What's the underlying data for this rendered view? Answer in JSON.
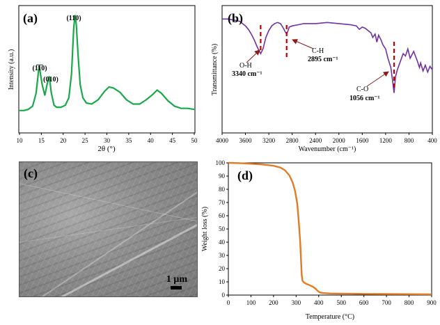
{
  "chart_data": [
    {
      "panel": "(a)",
      "type": "line",
      "xlabel": "2θ (°)",
      "ylabel": "Intensity (a.u.)",
      "xlim": [
        10,
        50
      ],
      "xticks": [
        10,
        15,
        20,
        25,
        30,
        35,
        40,
        45,
        50
      ],
      "color": "#1aa84a",
      "series": [
        {
          "x": [
            10,
            11,
            12,
            13,
            13.8,
            14.5,
            15.2,
            15.8,
            16.3,
            16.8,
            17.3,
            17.9,
            18.5,
            19.5,
            20.5,
            21.3,
            21.9,
            22.4,
            22.7,
            23.0,
            23.4,
            23.9,
            24.5,
            25.3,
            26.5,
            28,
            29.5,
            30.5,
            31.5,
            33,
            34.5,
            36,
            37.5,
            39,
            40.5,
            41.5,
            42.5,
            44,
            45.5,
            47,
            48.5,
            50
          ],
          "y": [
            0.06,
            0.06,
            0.07,
            0.1,
            0.22,
            0.48,
            0.3,
            0.2,
            0.3,
            0.38,
            0.22,
            0.11,
            0.09,
            0.09,
            0.11,
            0.18,
            0.4,
            0.82,
            0.95,
            0.86,
            0.58,
            0.3,
            0.18,
            0.13,
            0.12,
            0.16,
            0.24,
            0.28,
            0.27,
            0.23,
            0.16,
            0.12,
            0.12,
            0.16,
            0.21,
            0.25,
            0.22,
            0.15,
            0.1,
            0.08,
            0.08,
            0.07
          ]
        }
      ],
      "annotations": [
        {
          "text": "(1̅1̅0)",
          "x": 14.5
        },
        {
          "text": "(010)",
          "x": 16.8
        },
        {
          "text": "(110)",
          "x": 22.7
        }
      ]
    },
    {
      "panel": "(b)",
      "type": "line",
      "xlabel": "Wavenumber (cm⁻¹)",
      "ylabel": "Transmittance (%)",
      "xlim": [
        4000,
        400
      ],
      "xticks": [
        4000,
        3600,
        3200,
        2800,
        2400,
        2000,
        1600,
        1200,
        800,
        400
      ],
      "color": "#7030a0",
      "series": [
        {
          "x": [
            4000,
            3900,
            3800,
            3700,
            3600,
            3550,
            3500,
            3450,
            3400,
            3340,
            3300,
            3250,
            3200,
            3150,
            3100,
            3050,
            3000,
            2950,
            2920,
            2895,
            2870,
            2850,
            2800,
            2700,
            2600,
            2400,
            2200,
            2000,
            1800,
            1700,
            1650,
            1600,
            1550,
            1500,
            1450,
            1420,
            1380,
            1350,
            1320,
            1280,
            1250,
            1200,
            1160,
            1110,
            1080,
            1056,
            1030,
            1000,
            950,
            900,
            860,
            820,
            780,
            720,
            660,
            620,
            600,
            560,
            520,
            480,
            440,
            400
          ],
          "y": [
            0.92,
            0.92,
            0.91,
            0.9,
            0.86,
            0.83,
            0.79,
            0.74,
            0.68,
            0.62,
            0.66,
            0.76,
            0.82,
            0.86,
            0.88,
            0.89,
            0.88,
            0.84,
            0.81,
            0.79,
            0.82,
            0.85,
            0.86,
            0.87,
            0.88,
            0.88,
            0.89,
            0.88,
            0.87,
            0.86,
            0.83,
            0.85,
            0.84,
            0.82,
            0.8,
            0.76,
            0.79,
            0.72,
            0.78,
            0.74,
            0.7,
            0.66,
            0.58,
            0.5,
            0.38,
            0.28,
            0.42,
            0.48,
            0.55,
            0.62,
            0.6,
            0.66,
            0.58,
            0.64,
            0.56,
            0.5,
            0.54,
            0.47,
            0.52,
            0.46,
            0.51,
            0.48
          ]
        }
      ],
      "annotations": [
        {
          "label": "O-H",
          "value": "3340 cm⁻¹",
          "x": 3340
        },
        {
          "label": "C-H",
          "value": "2895 cm⁻¹",
          "x": 2895
        },
        {
          "label": "C-O",
          "value": "1056 cm⁻¹",
          "x": 1056
        }
      ]
    },
    {
      "panel": "(d)",
      "type": "line",
      "xlabel": "Temperature (°C)",
      "ylabel": "Weight loss (%)",
      "xlim": [
        0,
        900
      ],
      "ylim": [
        0,
        100
      ],
      "xticks": [
        0,
        100,
        200,
        300,
        400,
        500,
        600,
        700,
        800,
        900
      ],
      "yticks": [
        0,
        10,
        20,
        30,
        40,
        50,
        60,
        70,
        80,
        90,
        100
      ],
      "color": "#e07b26",
      "series": [
        {
          "x": [
            0,
            50,
            100,
            150,
            200,
            230,
            250,
            270,
            285,
            295,
            305,
            312,
            318,
            322,
            325,
            328,
            330,
            335,
            345,
            360,
            375,
            385,
            395,
            405,
            420,
            450,
            500,
            550,
            600,
            700,
            800,
            900
          ],
          "y": [
            100,
            99.8,
            99.3,
            98.8,
            97.8,
            96.5,
            94.5,
            90.5,
            85,
            79,
            69,
            55,
            40,
            25,
            15,
            11,
            10.4,
            9.5,
            8.5,
            7.5,
            6.2,
            5.0,
            3.2,
            2.0,
            1.5,
            1.2,
            1.1,
            1.0,
            0.9,
            0.8,
            0.7,
            0.6
          ]
        }
      ]
    }
  ],
  "panels": {
    "a": {
      "label": "(a)"
    },
    "b": {
      "label": "(b)"
    },
    "c": {
      "label": "(c)",
      "scale": "1 μm"
    },
    "d": {
      "label": "(d)"
    }
  }
}
